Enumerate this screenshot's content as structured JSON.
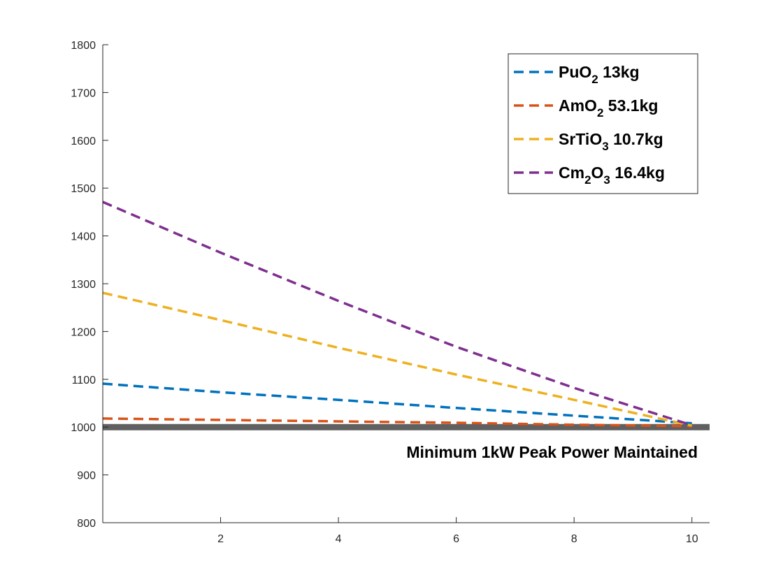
{
  "chart_data": {
    "type": "line",
    "title": "",
    "xlabel": "",
    "ylabel": "",
    "xlim": [
      0,
      10.3
    ],
    "ylim": [
      800,
      1800
    ],
    "x_ticks": [
      2,
      4,
      6,
      8,
      10
    ],
    "y_ticks": [
      800,
      900,
      1000,
      1100,
      1200,
      1300,
      1400,
      1500,
      1600,
      1700,
      1800
    ],
    "grid": false,
    "legend_position": "top-right",
    "series": [
      {
        "name": "PuO2 13kg",
        "legend": {
          "base": "PuO",
          "sub": "2",
          "rest": " 13kg"
        },
        "color": "#0072BD",
        "style": "dashed",
        "points": [
          [
            0,
            1091
          ],
          [
            2,
            1073
          ],
          [
            4,
            1057
          ],
          [
            6,
            1040
          ],
          [
            8,
            1024
          ],
          [
            10,
            1008
          ]
        ]
      },
      {
        "name": "AmO2 53.1kg",
        "legend": {
          "base": "AmO",
          "sub": "2",
          "rest": " 53.1kg"
        },
        "color": "#D95319",
        "style": "dashed",
        "points": [
          [
            0,
            1018
          ],
          [
            2,
            1015
          ],
          [
            4,
            1012
          ],
          [
            6,
            1009
          ],
          [
            8,
            1005
          ],
          [
            10,
            1002
          ]
        ]
      },
      {
        "name": "SrTiO3 10.7kg",
        "legend": {
          "base": "SrTiO",
          "sub": "3",
          "rest": " 10.7kg"
        },
        "color": "#EDB120",
        "style": "dashed",
        "points": [
          [
            0,
            1281
          ],
          [
            2,
            1224
          ],
          [
            4,
            1166
          ],
          [
            6,
            1110
          ],
          [
            8,
            1057
          ],
          [
            10,
            1003
          ]
        ]
      },
      {
        "name": "Cm2O3 16.4kg",
        "legend": {
          "base": "Cm",
          "sub": "2",
          "mid": "O",
          "sub2": "3",
          "rest": " 16.4kg"
        },
        "color": "#7E2F8E",
        "style": "dashed",
        "points": [
          [
            0,
            1471
          ],
          [
            2,
            1365
          ],
          [
            4,
            1264
          ],
          [
            6,
            1168
          ],
          [
            8,
            1082
          ],
          [
            10,
            1004
          ]
        ]
      }
    ],
    "reference_line": {
      "y": 1000,
      "color": "#606060",
      "label": "Minimum 1kW Peak Power Maintained"
    }
  }
}
